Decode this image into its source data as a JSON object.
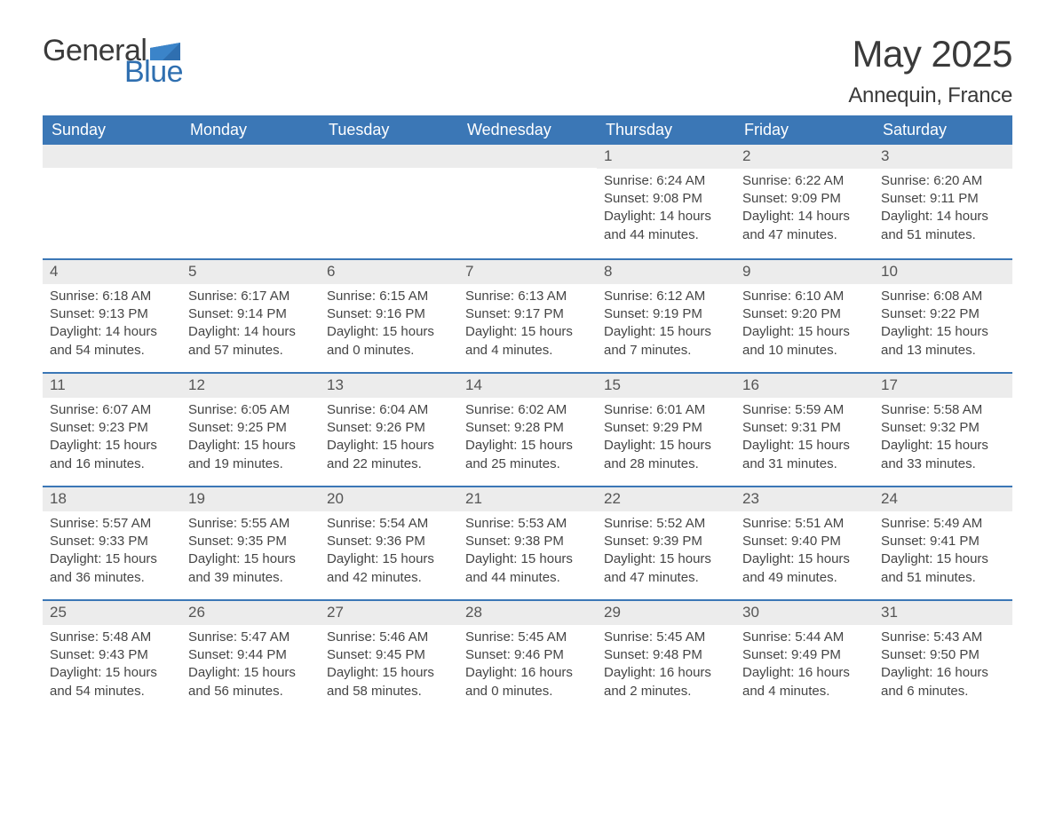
{
  "brand": {
    "text1": "General",
    "text2": "Blue",
    "shape_color": "#2f6fb0"
  },
  "title": "May 2025",
  "location": "Annequin, France",
  "colors": {
    "header_bg": "#3b77b6",
    "header_text": "#ffffff",
    "daynum_bg": "#ececec",
    "week_border": "#3b77b6",
    "body_text": "#454545",
    "page_bg": "#ffffff"
  },
  "fonts": {
    "title_size_pt": 32,
    "location_size_pt": 18,
    "header_size_pt": 14,
    "body_size_pt": 11
  },
  "day_headers": [
    "Sunday",
    "Monday",
    "Tuesday",
    "Wednesday",
    "Thursday",
    "Friday",
    "Saturday"
  ],
  "weeks": [
    [
      null,
      null,
      null,
      null,
      {
        "n": "1",
        "sr": "6:24 AM",
        "ss": "9:08 PM",
        "dl": "14 hours and 44 minutes."
      },
      {
        "n": "2",
        "sr": "6:22 AM",
        "ss": "9:09 PM",
        "dl": "14 hours and 47 minutes."
      },
      {
        "n": "3",
        "sr": "6:20 AM",
        "ss": "9:11 PM",
        "dl": "14 hours and 51 minutes."
      }
    ],
    [
      {
        "n": "4",
        "sr": "6:18 AM",
        "ss": "9:13 PM",
        "dl": "14 hours and 54 minutes."
      },
      {
        "n": "5",
        "sr": "6:17 AM",
        "ss": "9:14 PM",
        "dl": "14 hours and 57 minutes."
      },
      {
        "n": "6",
        "sr": "6:15 AM",
        "ss": "9:16 PM",
        "dl": "15 hours and 0 minutes."
      },
      {
        "n": "7",
        "sr": "6:13 AM",
        "ss": "9:17 PM",
        "dl": "15 hours and 4 minutes."
      },
      {
        "n": "8",
        "sr": "6:12 AM",
        "ss": "9:19 PM",
        "dl": "15 hours and 7 minutes."
      },
      {
        "n": "9",
        "sr": "6:10 AM",
        "ss": "9:20 PM",
        "dl": "15 hours and 10 minutes."
      },
      {
        "n": "10",
        "sr": "6:08 AM",
        "ss": "9:22 PM",
        "dl": "15 hours and 13 minutes."
      }
    ],
    [
      {
        "n": "11",
        "sr": "6:07 AM",
        "ss": "9:23 PM",
        "dl": "15 hours and 16 minutes."
      },
      {
        "n": "12",
        "sr": "6:05 AM",
        "ss": "9:25 PM",
        "dl": "15 hours and 19 minutes."
      },
      {
        "n": "13",
        "sr": "6:04 AM",
        "ss": "9:26 PM",
        "dl": "15 hours and 22 minutes."
      },
      {
        "n": "14",
        "sr": "6:02 AM",
        "ss": "9:28 PM",
        "dl": "15 hours and 25 minutes."
      },
      {
        "n": "15",
        "sr": "6:01 AM",
        "ss": "9:29 PM",
        "dl": "15 hours and 28 minutes."
      },
      {
        "n": "16",
        "sr": "5:59 AM",
        "ss": "9:31 PM",
        "dl": "15 hours and 31 minutes."
      },
      {
        "n": "17",
        "sr": "5:58 AM",
        "ss": "9:32 PM",
        "dl": "15 hours and 33 minutes."
      }
    ],
    [
      {
        "n": "18",
        "sr": "5:57 AM",
        "ss": "9:33 PM",
        "dl": "15 hours and 36 minutes."
      },
      {
        "n": "19",
        "sr": "5:55 AM",
        "ss": "9:35 PM",
        "dl": "15 hours and 39 minutes."
      },
      {
        "n": "20",
        "sr": "5:54 AM",
        "ss": "9:36 PM",
        "dl": "15 hours and 42 minutes."
      },
      {
        "n": "21",
        "sr": "5:53 AM",
        "ss": "9:38 PM",
        "dl": "15 hours and 44 minutes."
      },
      {
        "n": "22",
        "sr": "5:52 AM",
        "ss": "9:39 PM",
        "dl": "15 hours and 47 minutes."
      },
      {
        "n": "23",
        "sr": "5:51 AM",
        "ss": "9:40 PM",
        "dl": "15 hours and 49 minutes."
      },
      {
        "n": "24",
        "sr": "5:49 AM",
        "ss": "9:41 PM",
        "dl": "15 hours and 51 minutes."
      }
    ],
    [
      {
        "n": "25",
        "sr": "5:48 AM",
        "ss": "9:43 PM",
        "dl": "15 hours and 54 minutes."
      },
      {
        "n": "26",
        "sr": "5:47 AM",
        "ss": "9:44 PM",
        "dl": "15 hours and 56 minutes."
      },
      {
        "n": "27",
        "sr": "5:46 AM",
        "ss": "9:45 PM",
        "dl": "15 hours and 58 minutes."
      },
      {
        "n": "28",
        "sr": "5:45 AM",
        "ss": "9:46 PM",
        "dl": "16 hours and 0 minutes."
      },
      {
        "n": "29",
        "sr": "5:45 AM",
        "ss": "9:48 PM",
        "dl": "16 hours and 2 minutes."
      },
      {
        "n": "30",
        "sr": "5:44 AM",
        "ss": "9:49 PM",
        "dl": "16 hours and 4 minutes."
      },
      {
        "n": "31",
        "sr": "5:43 AM",
        "ss": "9:50 PM",
        "dl": "16 hours and 6 minutes."
      }
    ]
  ],
  "labels": {
    "sunrise": "Sunrise:",
    "sunset": "Sunset:",
    "daylight": "Daylight:"
  }
}
